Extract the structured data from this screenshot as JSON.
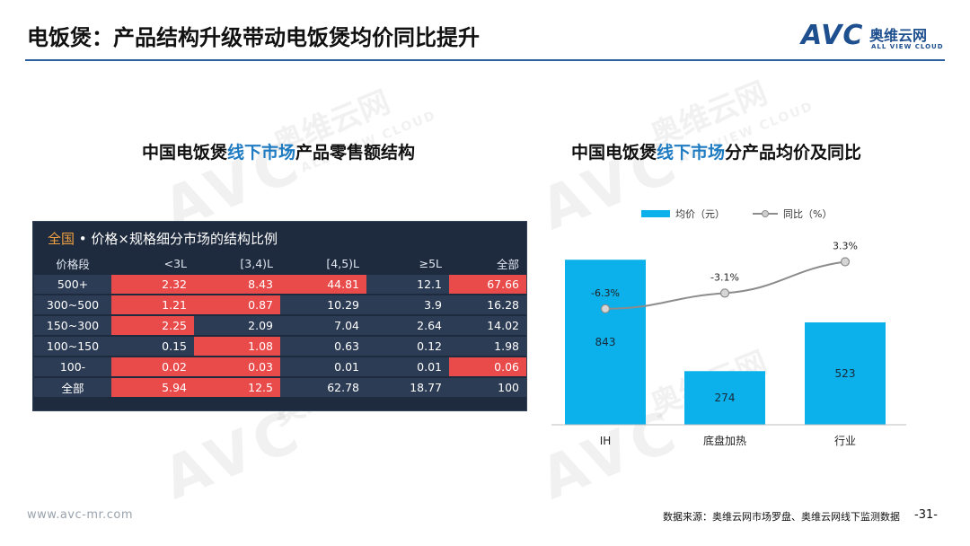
{
  "header": {
    "title": "电饭煲：产品结构升级带动电饭煲均价同比提升",
    "logo_text": "AVC",
    "logo_cn": "奥维云网",
    "logo_en": "ALL VIEW CLOUD"
  },
  "left_section": {
    "title_pre": "中国电饭煲",
    "title_hl": "线下市场",
    "title_post": "产品零售额结构",
    "caption_region": "全国",
    "caption_rest": " • 价格×规格细分市场的结构比例",
    "columns": [
      "价格段",
      "<3L",
      "[3,4)L",
      "[4,5)L",
      "≥5L",
      "全部"
    ],
    "rows": [
      {
        "label": "500+",
        "cells": [
          "2.32",
          "8.43",
          "44.81",
          "12.1",
          "67.66"
        ],
        "hot": [
          true,
          true,
          true,
          false,
          true
        ]
      },
      {
        "label": "300~500",
        "cells": [
          "1.21",
          "0.87",
          "10.29",
          "3.9",
          "16.28"
        ],
        "hot": [
          true,
          true,
          false,
          false,
          false
        ]
      },
      {
        "label": "150~300",
        "cells": [
          "2.25",
          "2.09",
          "7.04",
          "2.64",
          "14.02"
        ],
        "hot": [
          true,
          false,
          false,
          false,
          false
        ]
      },
      {
        "label": "100~150",
        "cells": [
          "0.15",
          "1.08",
          "0.63",
          "0.12",
          "1.98"
        ],
        "hot": [
          false,
          true,
          false,
          false,
          false
        ]
      },
      {
        "label": "100-",
        "cells": [
          "0.02",
          "0.03",
          "0.01",
          "0.01",
          "0.06"
        ],
        "hot": [
          true,
          true,
          false,
          false,
          true
        ]
      },
      {
        "label": "全部",
        "cells": [
          "5.94",
          "12.5",
          "62.78",
          "18.77",
          "100"
        ],
        "hot": [
          true,
          true,
          false,
          false,
          false
        ]
      }
    ]
  },
  "right_section": {
    "title_pre": "中国电饭煲",
    "title_hl": "线下市场",
    "title_post": "分产品均价及同比"
  },
  "chart_data": {
    "type": "bar",
    "categories": [
      "IH",
      "底盘加热",
      "行业"
    ],
    "series": [
      {
        "name": "均价（元）",
        "type": "bar",
        "values": [
          843,
          274,
          523
        ],
        "color": "#0cb0ea"
      },
      {
        "name": "同比（%）",
        "type": "line",
        "values": [
          -6.3,
          -3.1,
          3.3
        ],
        "labels": [
          "-6.3%",
          "-3.1%",
          "3.3%"
        ],
        "color": "#8c8c8c"
      }
    ],
    "ylim": [
      0,
      1000
    ],
    "y2lim": [
      -30,
      10
    ],
    "legend_position": "top",
    "grid": false
  },
  "footer": {
    "url": "www.avc-mr.com",
    "source": "数据来源：奥维云网市场罗盘、奥维云网线下监测数据",
    "page": "-31-"
  },
  "watermark": {
    "text": "AVC",
    "cn": "奥维云网",
    "en": "ALL VIEW CLOUD"
  }
}
